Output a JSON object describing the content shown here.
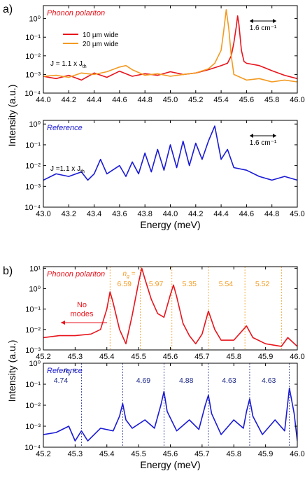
{
  "panel_labels": {
    "a": "a)",
    "b": "b)"
  },
  "shared_ylabel": "Intensity (a.u.)",
  "colors": {
    "red": "#e8141c",
    "orange": "#f39a21",
    "blue": "#1a1ad6",
    "navy": "#1e2a8a",
    "black": "#000000"
  },
  "chart_data": [
    {
      "id": "a-top",
      "type": "line",
      "yscale": "log",
      "xlim": [
        44.0,
        46.0
      ],
      "ylim": [
        0.0001,
        5
      ],
      "xticks": [
        "44.0",
        "44.2",
        "44.4",
        "44.6",
        "44.8",
        "45.0",
        "45.2",
        "45.4",
        "45.6",
        "45.8",
        "46.0"
      ],
      "yticks": [
        {
          "v": 0.0001,
          "l": "10⁻⁴"
        },
        {
          "v": 0.001,
          "l": "10⁻³"
        },
        {
          "v": 0.01,
          "l": "10⁻²"
        },
        {
          "v": 0.1,
          "l": "10⁻¹"
        },
        {
          "v": 1,
          "l": "10⁰"
        }
      ],
      "xlabel": "",
      "annotation_title": "Phonon polariton",
      "annotation_current": "J = 1.1 x J",
      "annotation_current_sub": "th",
      "scale_bar_label": "1.6 cm⁻¹",
      "legend": [
        {
          "label": "10 µm wide",
          "color": "#e8141c"
        },
        {
          "label": "20 µm wide",
          "color": "#f39a21"
        }
      ],
      "series": [
        {
          "name": "10 µm wide",
          "color": "#e8141c",
          "x": [
            44.0,
            44.1,
            44.2,
            44.3,
            44.4,
            44.5,
            44.6,
            44.7,
            44.8,
            44.9,
            45.0,
            45.1,
            45.2,
            45.3,
            45.4,
            45.45,
            45.48,
            45.5,
            45.52,
            45.53,
            45.54,
            45.56,
            45.58,
            45.6,
            45.7,
            45.8,
            45.9,
            46.0
          ],
          "y": [
            0.0008,
            0.0006,
            0.0009,
            0.0005,
            0.0012,
            0.0007,
            0.0015,
            0.0008,
            0.0011,
            0.0009,
            0.0014,
            0.001,
            0.0012,
            0.0018,
            0.003,
            0.004,
            0.01,
            0.05,
            0.4,
            1.4,
            0.5,
            0.02,
            0.005,
            0.004,
            0.003,
            0.0016,
            0.0009,
            0.0006
          ]
        },
        {
          "name": "20 µm wide",
          "color": "#f39a21",
          "x": [
            44.0,
            44.1,
            44.2,
            44.3,
            44.4,
            44.5,
            44.6,
            44.65,
            44.7,
            44.8,
            44.9,
            45.0,
            45.1,
            45.2,
            45.3,
            45.35,
            45.4,
            45.42,
            45.44,
            45.46,
            45.48,
            45.5,
            45.6,
            45.7,
            45.8,
            45.9,
            46.0
          ],
          "y": [
            0.0008,
            0.0009,
            0.0007,
            0.0012,
            0.001,
            0.0014,
            0.0025,
            0.003,
            0.0018,
            0.0009,
            0.0011,
            0.0008,
            0.001,
            0.0012,
            0.002,
            0.004,
            0.02,
            0.2,
            3.0,
            0.3,
            0.01,
            0.001,
            0.0005,
            0.0006,
            0.0004,
            0.0005,
            0.0004
          ]
        }
      ]
    },
    {
      "id": "a-bottom",
      "type": "line",
      "yscale": "log",
      "xlim": [
        43.0,
        45.0
      ],
      "ylim": [
        0.0001,
        1.5
      ],
      "xticks": [
        "43.0",
        "43.2",
        "43.4",
        "43.6",
        "43.8",
        "44.0",
        "44.2",
        "44.4",
        "44.6",
        "44.8",
        "45.0"
      ],
      "yticks": [
        {
          "v": 0.0001,
          "l": "10⁻⁴"
        },
        {
          "v": 0.001,
          "l": "10⁻³"
        },
        {
          "v": 0.01,
          "l": "10⁻²"
        },
        {
          "v": 0.1,
          "l": "10⁻¹"
        },
        {
          "v": 1,
          "l": "10⁰"
        }
      ],
      "xlabel": "Energy (meV)",
      "annotation_title": "Reference",
      "annotation_current": "J =1.1 x J",
      "annotation_current_sub": "th",
      "scale_bar_label": "1.6 cm⁻¹",
      "series": [
        {
          "name": "",
          "color": "#1a1ad6",
          "x": [
            43.0,
            43.1,
            43.2,
            43.3,
            43.35,
            43.4,
            43.45,
            43.5,
            43.6,
            43.65,
            43.7,
            43.75,
            43.8,
            43.85,
            43.9,
            43.95,
            44.0,
            44.05,
            44.1,
            44.15,
            44.2,
            44.25,
            44.3,
            44.35,
            44.4,
            44.45,
            44.5,
            44.6,
            44.7,
            44.8,
            44.9,
            45.0
          ],
          "y": [
            0.002,
            0.004,
            0.003,
            0.005,
            0.002,
            0.004,
            0.02,
            0.004,
            0.01,
            0.003,
            0.015,
            0.004,
            0.04,
            0.005,
            0.06,
            0.006,
            0.1,
            0.008,
            0.15,
            0.01,
            0.12,
            0.02,
            0.15,
            0.8,
            0.02,
            0.06,
            0.008,
            0.006,
            0.003,
            0.002,
            0.003,
            0.002
          ]
        }
      ]
    },
    {
      "id": "b-top",
      "type": "line",
      "yscale": "log",
      "xlim": [
        45.2,
        46.0
      ],
      "ylim": [
        0.001,
        12
      ],
      "xticks": [
        "45.2",
        "45.3",
        "45.4",
        "45.5",
        "45.6",
        "45.7",
        "45.8",
        "45.9",
        "46.0"
      ],
      "yticks": [
        {
          "v": 0.001,
          "l": "10⁻³"
        },
        {
          "v": 0.01,
          "l": "10⁻²"
        },
        {
          "v": 0.1,
          "l": "10⁻¹"
        },
        {
          "v": 1,
          "l": "10⁰"
        },
        {
          "v": 10,
          "l": "10¹"
        }
      ],
      "xlabel": "",
      "annotation_title": "Phonon polariton",
      "annotation_ng": "n",
      "annotation_ng_sub": "g",
      "annotation_ng_suffix": " =",
      "arrow_text_line1": "No",
      "arrow_text_line2": "modes",
      "mode_markers": [
        45.41,
        45.505,
        45.605,
        45.72,
        45.835,
        45.95
      ],
      "ng_values": [
        {
          "x": 45.455,
          "label": "6.59"
        },
        {
          "x": 45.555,
          "label": "5.97"
        },
        {
          "x": 45.66,
          "label": "5.35"
        },
        {
          "x": 45.775,
          "label": "5.54"
        },
        {
          "x": 45.89,
          "label": "5.52"
        }
      ],
      "series": [
        {
          "name": "",
          "color": "#e8141c",
          "x": [
            45.2,
            45.25,
            45.3,
            45.35,
            45.38,
            45.4,
            45.41,
            45.42,
            45.44,
            45.46,
            45.48,
            45.5,
            45.51,
            45.52,
            45.54,
            45.56,
            45.58,
            45.6,
            45.61,
            45.62,
            45.64,
            45.66,
            45.68,
            45.7,
            45.72,
            45.74,
            45.76,
            45.8,
            45.84,
            45.86,
            45.9,
            45.95,
            45.97,
            46.0
          ],
          "y": [
            0.004,
            0.005,
            0.005,
            0.006,
            0.01,
            0.1,
            0.7,
            0.2,
            0.01,
            0.002,
            0.05,
            2,
            10,
            3,
            0.3,
            0.06,
            0.04,
            0.5,
            1.5,
            0.4,
            0.02,
            0.005,
            0.002,
            0.006,
            0.08,
            0.01,
            0.003,
            0.003,
            0.015,
            0.004,
            0.002,
            0.0015,
            0.004,
            0.0015
          ]
        }
      ]
    },
    {
      "id": "b-bottom",
      "type": "line",
      "yscale": "log",
      "xlim": [
        45.2,
        46.0
      ],
      "ylim": [
        0.0001,
        1
      ],
      "xticks": [
        "45.2",
        "45.3",
        "45.4",
        "45.5",
        "45.6",
        "45.7",
        "45.8",
        "45.9",
        "46.0"
      ],
      "yticks": [
        {
          "v": 0.0001,
          "l": "10⁻⁴"
        },
        {
          "v": 0.001,
          "l": "10⁻³"
        },
        {
          "v": 0.01,
          "l": "10⁻²"
        },
        {
          "v": 0.1,
          "l": "10⁻¹"
        },
        {
          "v": 1,
          "l": "10⁰"
        }
      ],
      "xlabel": "Energy (meV)",
      "annotation_title": "Reference",
      "annotation_ng": "n",
      "annotation_ng_sub": "g",
      "annotation_ng_suffix": " =",
      "mode_markers": [
        45.32,
        45.45,
        45.58,
        45.72,
        45.85,
        45.975
      ],
      "ng_values": [
        {
          "x": 45.255,
          "label": "4.74"
        },
        {
          "x": 45.515,
          "label": "4.69"
        },
        {
          "x": 45.65,
          "label": "4.88"
        },
        {
          "x": 45.785,
          "label": "4.63"
        },
        {
          "x": 45.91,
          "label": "4.63"
        }
      ],
      "series": [
        {
          "name": "",
          "color": "#1a1ad6",
          "x": [
            45.2,
            45.24,
            45.28,
            45.3,
            45.32,
            45.34,
            45.38,
            45.42,
            45.44,
            45.45,
            45.46,
            45.48,
            45.52,
            45.55,
            45.57,
            45.58,
            45.59,
            45.62,
            45.66,
            45.69,
            45.71,
            45.72,
            45.73,
            45.76,
            45.8,
            45.83,
            45.84,
            45.85,
            45.86,
            45.89,
            45.93,
            45.96,
            45.975,
            45.99,
            46.0
          ],
          "y": [
            0.0004,
            0.0005,
            0.001,
            0.0002,
            0.0006,
            0.0002,
            0.0008,
            0.0006,
            0.003,
            0.012,
            0.002,
            0.0008,
            0.002,
            0.0008,
            0.01,
            0.045,
            0.005,
            0.0006,
            0.002,
            0.0007,
            0.01,
            0.03,
            0.004,
            0.0004,
            0.002,
            0.0008,
            0.005,
            0.02,
            0.003,
            0.0004,
            0.002,
            0.0006,
            0.065,
            0.004,
            0.0002
          ]
        }
      ]
    }
  ]
}
